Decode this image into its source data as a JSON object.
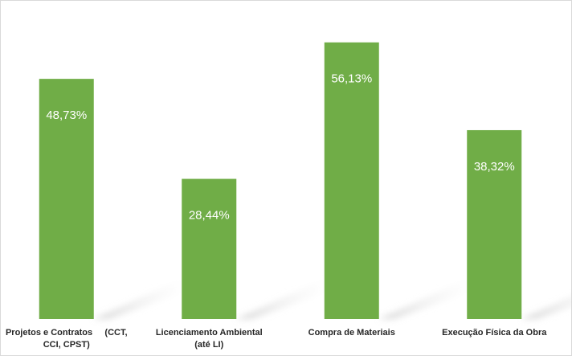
{
  "chart_data": {
    "type": "bar",
    "categories": [
      [
        "Projetos e Contratos     (CCT,",
        "CCI, CPST)"
      ],
      [
        "Licenciamento Ambiental",
        "(até LI)"
      ],
      [
        "Compra de Materiais"
      ],
      [
        "Execução Física da Obra"
      ]
    ],
    "values": [
      48.73,
      28.44,
      56.13,
      38.32
    ],
    "value_labels": [
      "48,73%",
      "28,44%",
      "56,13%",
      "38,32%"
    ],
    "unit": "%",
    "ylim": [
      0,
      60
    ],
    "grid": false,
    "legend": "none",
    "bar_color": "#70ad47",
    "shadow_color": "#d9d9d9",
    "border_color": "#d9d9d9"
  }
}
